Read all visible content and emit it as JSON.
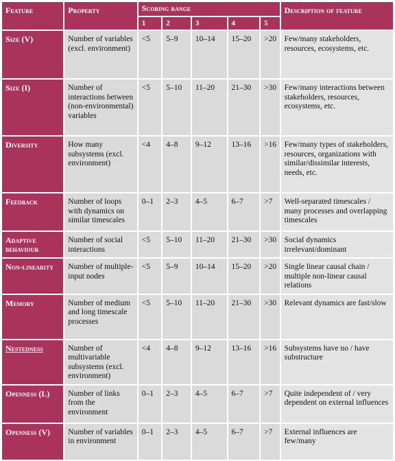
{
  "headers": {
    "feature": "Feature",
    "property": "Property",
    "scoring_range": "Scoring range",
    "description": "Description of feature",
    "scores": [
      "1",
      "2",
      "3",
      "4",
      "5"
    ]
  },
  "rows": [
    {
      "feature": "Size (V)",
      "property": "Number of variables (excl. environment)",
      "s": [
        "<5",
        "5–9",
        "10–14",
        "15–20",
        ">20"
      ],
      "description": "Few/many stakeholders, resources, ecosystems, etc."
    },
    {
      "feature": "Size (I)",
      "property": "Number of interactions between (non-environmental) variables",
      "s": [
        "<5",
        "5–10",
        "11–20",
        "21–30",
        ">30"
      ],
      "description": "Few/many interactions between stakeholders, resources, ecosystems, etc."
    },
    {
      "feature": "Diversity",
      "property": "How many subsystems (excl. environment)",
      "s": [
        "<4",
        "4–8",
        "9–12",
        "13–16",
        ">16"
      ],
      "description": "Few/many types of stakeholders, resources, organizations with similar/dissimilar interests, needs, etc."
    },
    {
      "feature": "Feedback",
      "property": "Number of loops with dynamics on similar timescales",
      "s": [
        "0–1",
        "2–3",
        "4–5",
        "6–7",
        ">7"
      ],
      "description": "Well-separated timescales / many processes and overlapping timescales"
    },
    {
      "feature": "Adaptive behaviour",
      "property": "Number of social interactions",
      "s": [
        "<5",
        "5–10",
        "11–20",
        "21–30",
        ">30"
      ],
      "description": "Social dynamics irrelevant/dominant"
    },
    {
      "feature": "Non-linearity",
      "property": "Number of multiple-input nodes",
      "s": [
        "<5",
        "5–9",
        "10–14",
        "15–20",
        ">20"
      ],
      "description": "Single linear causal chain / multiple non-linear causal relations"
    },
    {
      "feature": "Memory",
      "property": "Number of medium and long timescale processes",
      "s": [
        "<5",
        "5–10",
        "11–20",
        "21–30",
        ">30"
      ],
      "description": "Relevant dynamics are fast/slow"
    },
    {
      "feature": "Nestedness",
      "property": "Number of multivariable subsystems (excl. environment)",
      "s": [
        "<4",
        "4–8",
        "9–12",
        "13–16",
        ">16"
      ],
      "description": "Subsystems have no / have substructure"
    },
    {
      "feature": "Openness (L)",
      "property": "Number of links from the environment",
      "s": [
        "0–1",
        "2–3",
        "4–5",
        "6–7",
        ">7"
      ],
      "description": "Quite independent of / very dependent on external influences"
    },
    {
      "feature": "Openness (V)",
      "property": "Number of variables in environment",
      "s": [
        "0–1",
        "2–3",
        "4–5",
        "6–7",
        ">7"
      ],
      "description": "External influences are few/many"
    }
  ]
}
